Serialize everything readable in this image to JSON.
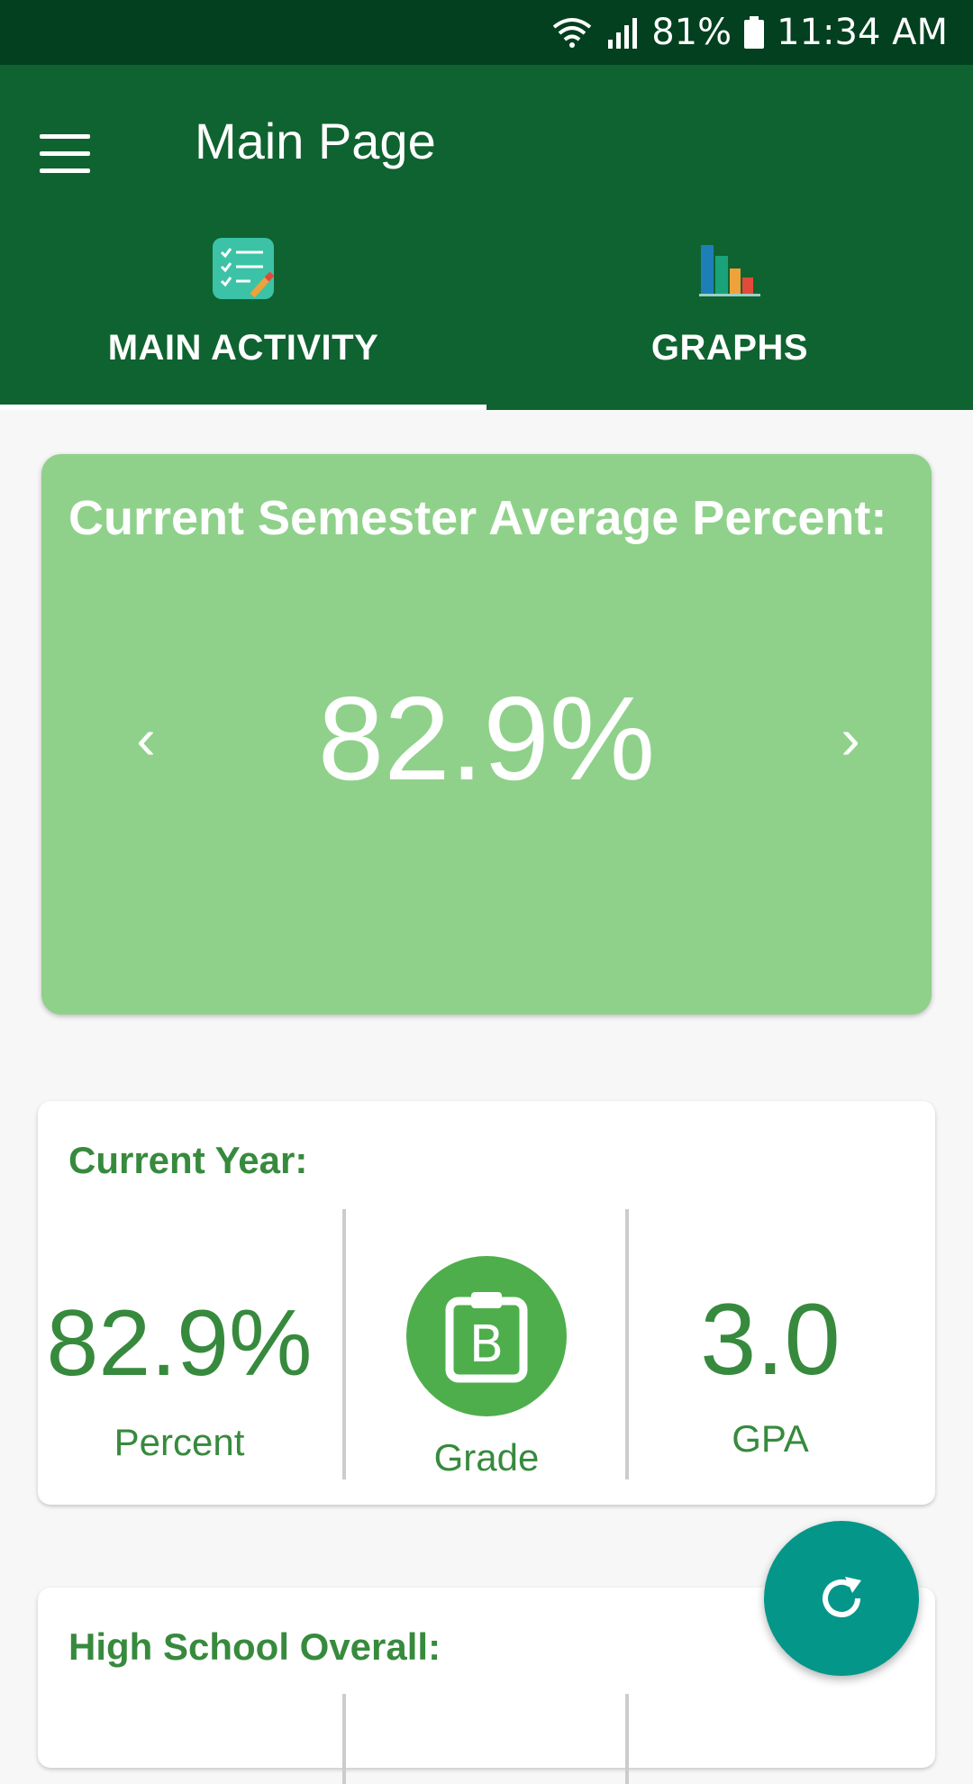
{
  "status_bar": {
    "battery": "81%",
    "time": "11:34 AM"
  },
  "app_bar": {
    "title": "Main Page"
  },
  "tabs": [
    {
      "label": "MAIN ACTIVITY",
      "selected": true,
      "icon": "checklist-icon"
    },
    {
      "label": "GRAPHS",
      "selected": false,
      "icon": "bar-chart-icon"
    }
  ],
  "semester_card": {
    "title": "Current Semester Average Percent:",
    "value": "82.9%"
  },
  "current_year": {
    "title": "Current Year:",
    "percent": "82.9%",
    "percent_label": "Percent",
    "grade_label": "Grade",
    "grade": "B",
    "gpa": "3.0",
    "gpa_label": "GPA"
  },
  "high_school": {
    "title": "High School Overall:"
  },
  "colors": {
    "status_bar": "#02401f",
    "app_bar": "#0f6330",
    "hero_card": "#8fd18a",
    "text_green": "#378a3d",
    "grade_circle": "#4eae4c",
    "fab": "#05968a"
  }
}
